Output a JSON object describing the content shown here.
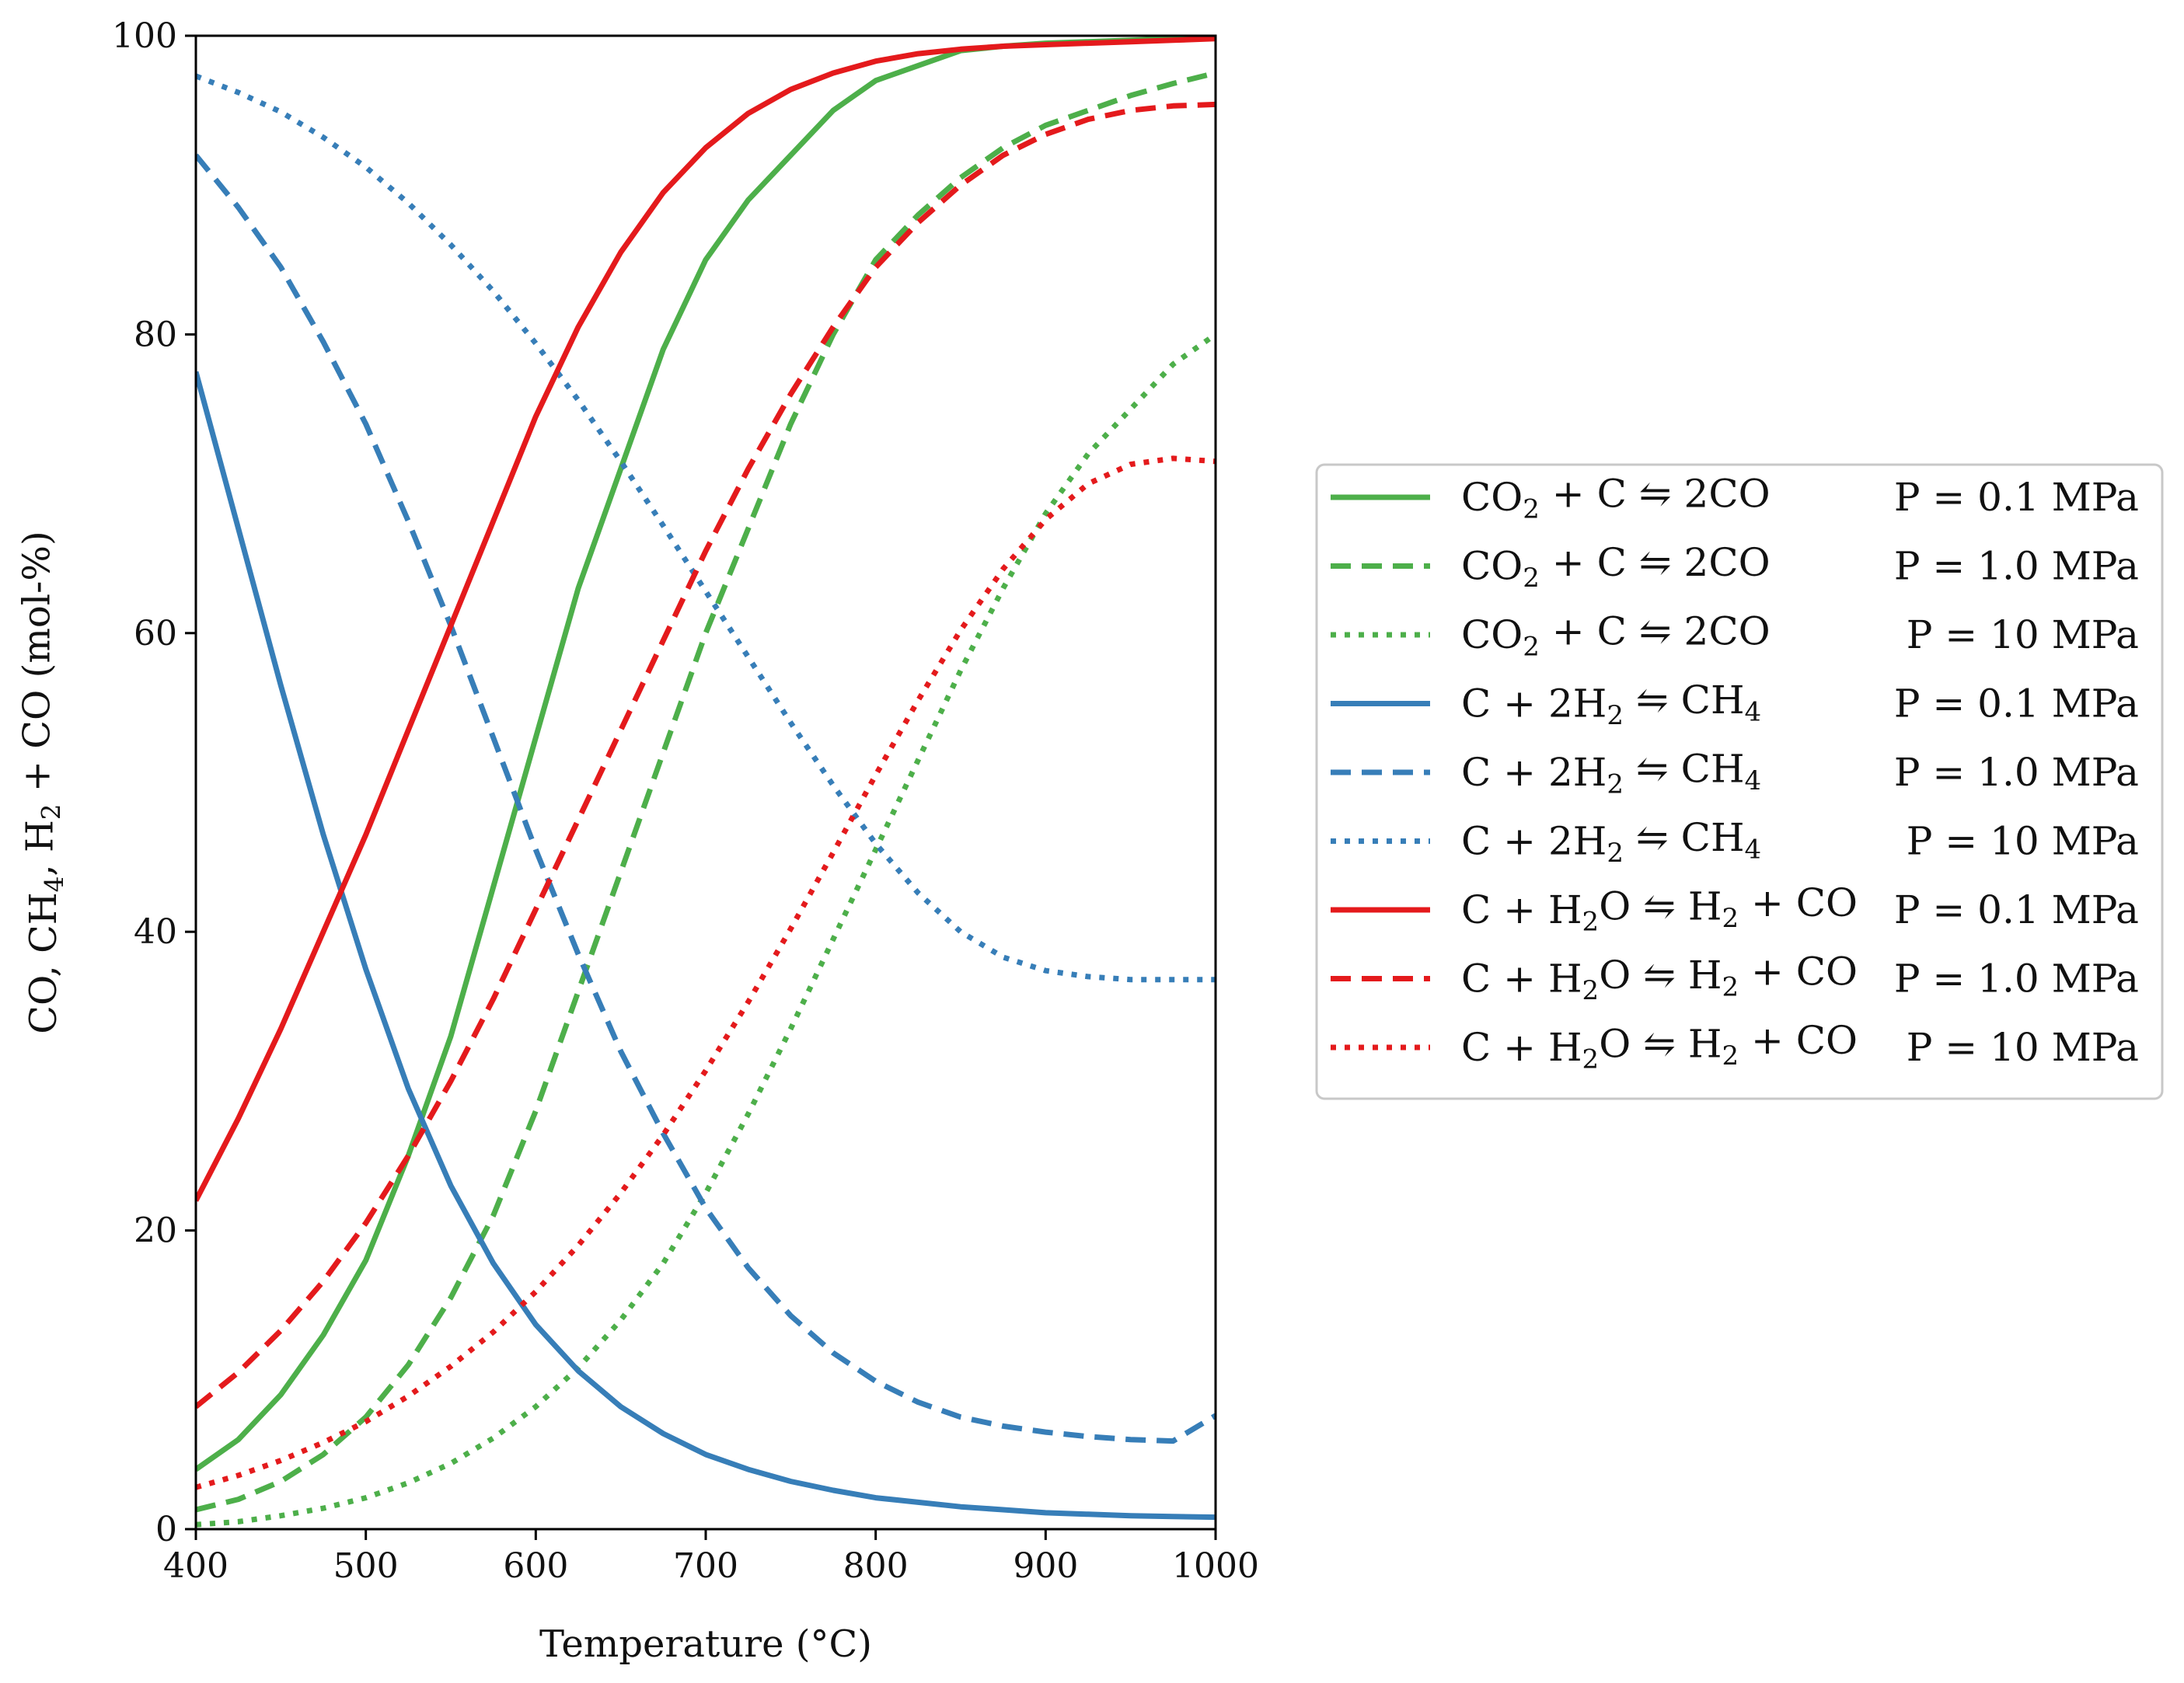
{
  "chart_data": {
    "type": "line",
    "xlabel": "Temperature (°C)",
    "ylabel_parts": [
      "CO, CH",
      "4",
      ", H",
      "2",
      " + CO (mol-%)"
    ],
    "xlim": [
      400,
      1000
    ],
    "ylim": [
      0,
      100
    ],
    "xticks": [
      "400",
      "500",
      "600",
      "700",
      "800",
      "900",
      "1000"
    ],
    "yticks": [
      "0",
      "20",
      "40",
      "60",
      "80",
      "100"
    ],
    "grid": false,
    "legend_position": "right",
    "x": [
      400,
      425,
      450,
      475,
      500,
      525,
      550,
      575,
      600,
      625,
      650,
      675,
      700,
      725,
      750,
      775,
      800,
      825,
      850,
      875,
      900,
      925,
      950,
      975,
      1000
    ],
    "series": [
      {
        "name": "CO2 + C ⇋ 2CO, P = 0.1 MPa",
        "reaction": [
          "CO",
          "2",
          " + C ⇋ 2CO"
        ],
        "pressure": "P = 0.1 MPa",
        "color": "#4daf4a",
        "style": "solid",
        "values": [
          4,
          6,
          9,
          13,
          18,
          25,
          33,
          43,
          53,
          63,
          71,
          79,
          85,
          89,
          92,
          95,
          97,
          98,
          99,
          99.3,
          99.5,
          99.6,
          99.7,
          99.8,
          99.9
        ]
      },
      {
        "name": "CO2 + C ⇋ 2CO, P = 1.0 MPa",
        "reaction": [
          "CO",
          "2",
          " + C ⇋ 2CO"
        ],
        "pressure": "P = 1.0 MPa",
        "color": "#4daf4a",
        "style": "dashed",
        "values": [
          1.3,
          2,
          3.2,
          5,
          7.5,
          11,
          15.5,
          21,
          28,
          36,
          44,
          52,
          60,
          67,
          74,
          80,
          85,
          88,
          90.5,
          92.5,
          94,
          95,
          96,
          96.8,
          97.5
        ]
      },
      {
        "name": "CO2 + C ⇋ 2CO, P = 10 MPa",
        "reaction": [
          "CO",
          "2",
          " + C ⇋ 2CO"
        ],
        "pressure": "P = 10 MPa",
        "color": "#4daf4a",
        "style": "dotted",
        "values": [
          0.3,
          0.5,
          0.9,
          1.4,
          2.1,
          3.1,
          4.4,
          6.1,
          8.2,
          10.8,
          14,
          17.8,
          22.5,
          27.8,
          33.5,
          39.5,
          45.5,
          51.5,
          57.5,
          63,
          68,
          72,
          75,
          78,
          80
        ]
      },
      {
        "name": "C + 2H2 ⇋ CH4, P = 0.1 MPa",
        "reaction": [
          "C + 2H",
          "2",
          " ⇋ CH",
          "4"
        ],
        "pressure": "P = 0.1 MPa",
        "color": "#377eb8",
        "style": "solid",
        "values": [
          77.5,
          67,
          56.5,
          46.5,
          37.5,
          29.5,
          23,
          17.8,
          13.7,
          10.6,
          8.2,
          6.4,
          5,
          4,
          3.2,
          2.6,
          2.1,
          1.8,
          1.5,
          1.3,
          1.1,
          1,
          0.9,
          0.85,
          0.8
        ]
      },
      {
        "name": "C + 2H2 ⇋ CH4, P = 1.0 MPa",
        "reaction": [
          "C + 2H",
          "2",
          " ⇋ CH",
          "4"
        ],
        "pressure": "P = 1.0 MPa",
        "color": "#377eb8",
        "style": "dashed",
        "values": [
          92,
          88.5,
          84.5,
          79.5,
          74,
          67.5,
          60.5,
          53,
          45.5,
          38.5,
          32,
          26.5,
          21.5,
          17.5,
          14.3,
          11.8,
          9.9,
          8.5,
          7.5,
          6.9,
          6.5,
          6.2,
          6,
          5.9,
          7.6
        ]
      },
      {
        "name": "C + 2H2 ⇋ CH4, P = 10 MPa",
        "reaction": [
          "C + 2H",
          "2",
          " ⇋ CH",
          "4"
        ],
        "pressure": "P = 10 MPa",
        "color": "#377eb8",
        "style": "dotted",
        "values": [
          97.3,
          96.2,
          94.9,
          93.2,
          91.2,
          88.8,
          86,
          82.9,
          79.4,
          75.6,
          71.5,
          67.2,
          62.8,
          58.4,
          54,
          49.8,
          45.9,
          42.6,
          40,
          38.3,
          37.4,
          37,
          36.8,
          36.8,
          36.8
        ]
      },
      {
        "name": "C + H2O ⇋ H2 + CO, P = 0.1 MPa",
        "reaction": [
          "C + H",
          "2",
          "O ⇋ H",
          "2",
          " + CO"
        ],
        "pressure": "P = 0.1 MPa",
        "color": "#e41a1c",
        "style": "solid",
        "values": [
          22,
          27.5,
          33.5,
          40,
          46.5,
          53.5,
          60.5,
          67.5,
          74.5,
          80.5,
          85.5,
          89.5,
          92.5,
          94.8,
          96.4,
          97.5,
          98.3,
          98.8,
          99.1,
          99.3,
          99.4,
          99.5,
          99.6,
          99.7,
          99.8
        ]
      },
      {
        "name": "C + H2O ⇋ H2 + CO, P = 1.0 MPa",
        "reaction": [
          "C + H",
          "2",
          "O ⇋ H",
          "2",
          " + CO"
        ],
        "pressure": "P = 1.0 MPa",
        "color": "#e41a1c",
        "style": "dashed",
        "values": [
          8.2,
          10.5,
          13.3,
          16.6,
          20.5,
          25,
          30,
          35.5,
          41.5,
          47.5,
          53.5,
          59.5,
          65.5,
          71,
          76,
          80.5,
          84.5,
          87.5,
          90,
          92,
          93.4,
          94.4,
          95,
          95.3,
          95.4
        ]
      },
      {
        "name": "C + H2O ⇋ H2 + CO, P = 10 MPa",
        "reaction": [
          "C + H",
          "2",
          "O ⇋ H",
          "2",
          " + CO"
        ],
        "pressure": "P = 10 MPa",
        "color": "#e41a1c",
        "style": "dotted",
        "values": [
          2.8,
          3.6,
          4.6,
          5.8,
          7.2,
          8.9,
          10.9,
          13.2,
          15.9,
          19,
          22.5,
          26.4,
          30.7,
          35.3,
          40.2,
          45.3,
          50.5,
          55.5,
          60.2,
          64.3,
          67.6,
          70,
          71.3,
          71.7,
          71.5
        ]
      }
    ]
  }
}
